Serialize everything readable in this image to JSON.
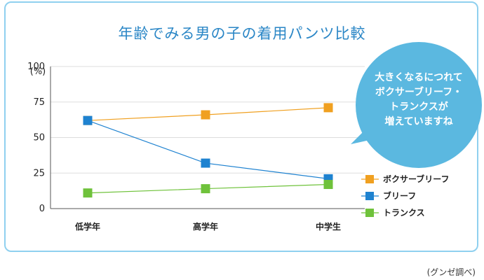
{
  "title": "年齢でみる男の子の着用パンツ比較",
  "source": "(グンゼ調べ)",
  "bubble": {
    "lines": [
      "大きくなるにつれて",
      "ボクサーブリーフ・",
      "トランクスが",
      "増えていますね"
    ],
    "color": "#5bb8e0"
  },
  "chart_data": {
    "type": "line",
    "categories": [
      "低学年",
      "高学年",
      "中学生"
    ],
    "yticks": [
      0,
      25,
      50,
      75,
      100
    ],
    "yunit": "(%)",
    "ylim": [
      0,
      100
    ],
    "grid": true,
    "legend_position": "right",
    "series": [
      {
        "name": "ボクサーブリーフ",
        "values": [
          62,
          66,
          71
        ],
        "color": "#f0a020"
      },
      {
        "name": "ブリーフ",
        "values": [
          62,
          32,
          21
        ],
        "color": "#1e82d0"
      },
      {
        "name": "トランクス",
        "values": [
          11,
          14,
          17
        ],
        "color": "#6fc23b"
      }
    ]
  }
}
